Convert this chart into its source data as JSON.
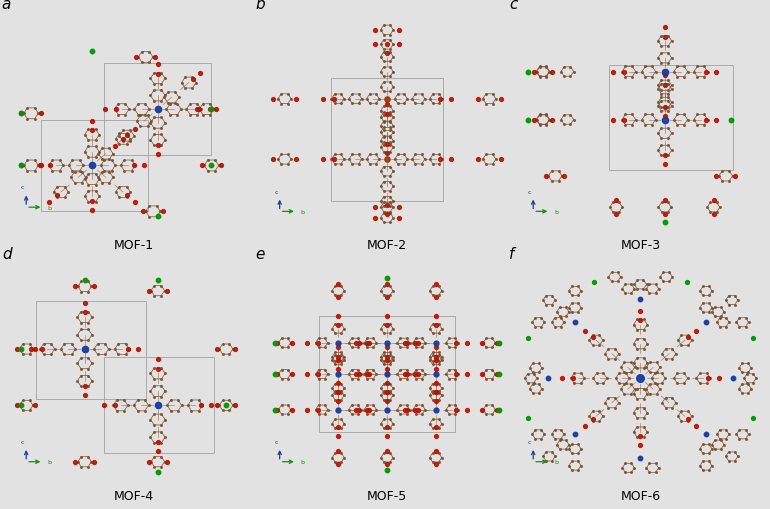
{
  "panel_labels": [
    "a",
    "b",
    "c",
    "d",
    "e",
    "f"
  ],
  "mof_labels": [
    "MOF-1",
    "MOF-2",
    "MOF-3",
    "MOF-4",
    "MOF-5",
    "MOF-6"
  ],
  "background_color": "#e2e2e2",
  "label_fontsize": 11,
  "mof_label_fontsize": 9,
  "grid_rows": 2,
  "grid_cols": 3,
  "fig_width": 7.7,
  "fig_height": 5.1,
  "carbon_color": "#7B4F2E",
  "oxygen_color": "#BB1100",
  "metal_color": "#1A3A9E",
  "chlorine_color": "#009900",
  "bond_color": "#7B4F2E",
  "box_color": "#AAAAAA"
}
